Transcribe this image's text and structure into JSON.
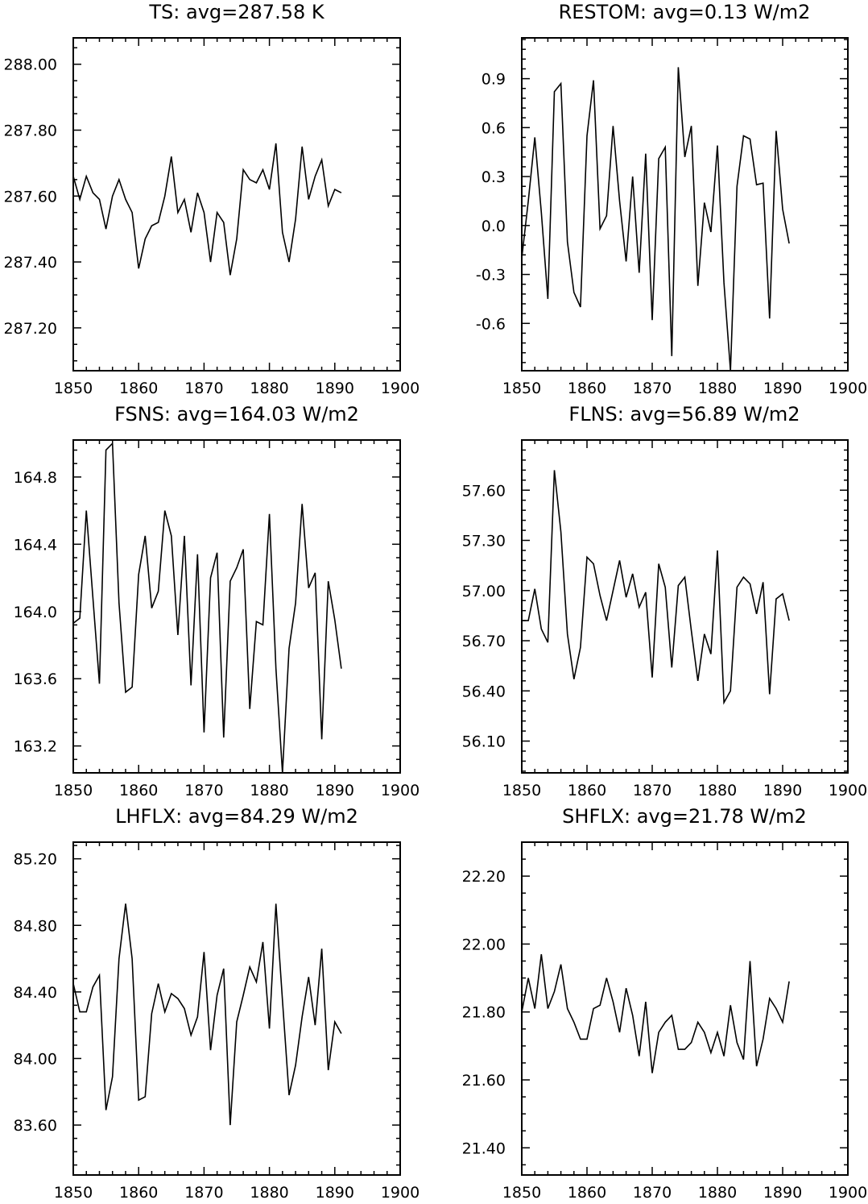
{
  "chart_data": [
    {
      "type": "line",
      "title": "TS: avg=287.58 K",
      "xlim": [
        1850,
        1900
      ],
      "ylim": [
        287.07,
        288.08
      ],
      "xticks": [
        "1850",
        "1860",
        "1870",
        "1880",
        "1890",
        "1900"
      ],
      "yticks": [
        "287.20",
        "287.40",
        "287.60",
        "287.80",
        "288.00"
      ],
      "series": [
        {
          "x": [
            1850,
            1851,
            1852,
            1853,
            1854,
            1855,
            1856,
            1857,
            1858,
            1859,
            1860,
            1861,
            1862,
            1863,
            1864,
            1865,
            1866,
            1867,
            1868,
            1869,
            1870,
            1871,
            1872,
            1873,
            1874,
            1875,
            1876,
            1877,
            1878,
            1879,
            1880,
            1881,
            1882,
            1883,
            1884,
            1885,
            1886,
            1887,
            1888,
            1889,
            1890,
            1891
          ],
          "values": [
            287.66,
            287.59,
            287.66,
            287.61,
            287.59,
            287.5,
            287.6,
            287.65,
            287.59,
            287.55,
            287.38,
            287.47,
            287.51,
            287.52,
            287.6,
            287.72,
            287.55,
            287.59,
            287.49,
            287.61,
            287.55,
            287.4,
            287.55,
            287.52,
            287.36,
            287.47,
            287.68,
            287.65,
            287.64,
            287.68,
            287.62,
            287.76,
            287.49,
            287.4,
            287.53,
            287.75,
            287.59,
            287.66,
            287.71,
            287.57,
            287.62,
            287.61
          ]
        }
      ]
    },
    {
      "type": "line",
      "title": "RESTOM: avg=0.13 W/m2",
      "xlim": [
        1850,
        1900
      ],
      "ylim": [
        -0.89,
        1.15
      ],
      "xticks": [
        "1850",
        "1860",
        "1870",
        "1880",
        "1890",
        "1900"
      ],
      "yticks": [
        "-0.6",
        "-0.3",
        "0.0",
        "0.3",
        "0.6",
        "0.9"
      ],
      "series": [
        {
          "x": [
            1850,
            1851,
            1852,
            1853,
            1854,
            1855,
            1856,
            1857,
            1858,
            1859,
            1860,
            1861,
            1862,
            1863,
            1864,
            1865,
            1866,
            1867,
            1868,
            1869,
            1870,
            1871,
            1872,
            1873,
            1874,
            1875,
            1876,
            1877,
            1878,
            1879,
            1880,
            1881,
            1882,
            1883,
            1884,
            1885,
            1886,
            1887,
            1888,
            1889,
            1890,
            1891
          ],
          "values": [
            -0.2,
            0.15,
            0.54,
            0.08,
            -0.45,
            0.82,
            0.87,
            -0.1,
            -0.41,
            -0.5,
            0.55,
            0.89,
            -0.02,
            0.06,
            0.61,
            0.15,
            -0.22,
            0.3,
            -0.29,
            0.44,
            -0.58,
            0.41,
            0.48,
            -0.8,
            0.97,
            0.42,
            0.61,
            -0.37,
            0.14,
            -0.04,
            0.49,
            -0.35,
            -0.89,
            0.24,
            0.55,
            0.53,
            0.25,
            0.26,
            -0.57,
            0.58,
            0.1,
            -0.11
          ]
        }
      ]
    },
    {
      "type": "line",
      "title": "FSNS: avg=164.03 W/m2",
      "xlim": [
        1850,
        1900
      ],
      "ylim": [
        163.04,
        165.02
      ],
      "xticks": [
        "1850",
        "1860",
        "1870",
        "1880",
        "1890",
        "1900"
      ],
      "yticks": [
        "163.2",
        "163.6",
        "164.0",
        "164.4",
        "164.8"
      ],
      "series": [
        {
          "x": [
            1850,
            1851,
            1852,
            1853,
            1854,
            1855,
            1856,
            1857,
            1858,
            1859,
            1860,
            1861,
            1862,
            1863,
            1864,
            1865,
            1866,
            1867,
            1868,
            1869,
            1870,
            1871,
            1872,
            1873,
            1874,
            1875,
            1876,
            1877,
            1878,
            1879,
            1880,
            1881,
            1882,
            1883,
            1884,
            1885,
            1886,
            1887,
            1888,
            1889,
            1890,
            1891
          ],
          "values": [
            163.93,
            163.96,
            164.6,
            164.08,
            163.57,
            164.96,
            165.0,
            164.05,
            163.52,
            163.55,
            164.22,
            164.45,
            164.02,
            164.12,
            164.6,
            164.45,
            163.86,
            164.45,
            163.56,
            164.34,
            163.28,
            164.2,
            164.35,
            163.25,
            164.18,
            164.26,
            164.37,
            163.42,
            163.94,
            163.92,
            164.58,
            163.66,
            163.04,
            163.78,
            164.05,
            164.64,
            164.14,
            164.23,
            163.24,
            164.18,
            163.95,
            163.66
          ]
        }
      ]
    },
    {
      "type": "line",
      "title": "FLNS: avg=56.89 W/m2",
      "xlim": [
        1850,
        1900
      ],
      "ylim": [
        55.91,
        57.9
      ],
      "xticks": [
        "1850",
        "1860",
        "1870",
        "1880",
        "1890",
        "1900"
      ],
      "yticks": [
        "56.10",
        "56.40",
        "56.70",
        "57.00",
        "57.30",
        "57.60"
      ],
      "series": [
        {
          "x": [
            1850,
            1851,
            1852,
            1853,
            1854,
            1855,
            1856,
            1857,
            1858,
            1859,
            1860,
            1861,
            1862,
            1863,
            1864,
            1865,
            1866,
            1867,
            1868,
            1869,
            1870,
            1871,
            1872,
            1873,
            1874,
            1875,
            1876,
            1877,
            1878,
            1879,
            1880,
            1881,
            1882,
            1883,
            1884,
            1885,
            1886,
            1887,
            1888,
            1889,
            1890,
            1891
          ],
          "values": [
            56.82,
            56.82,
            57.01,
            56.77,
            56.69,
            57.72,
            57.35,
            56.74,
            56.47,
            56.66,
            57.2,
            57.16,
            56.97,
            56.82,
            57.0,
            57.18,
            56.96,
            57.1,
            56.9,
            56.99,
            56.48,
            57.16,
            57.02,
            56.54,
            57.03,
            57.08,
            56.76,
            56.46,
            56.74,
            56.62,
            57.24,
            56.33,
            56.4,
            57.02,
            57.08,
            57.04,
            56.86,
            57.05,
            56.38,
            56.95,
            56.98,
            56.82
          ]
        }
      ]
    },
    {
      "type": "line",
      "title": "LHFLX: avg=84.29 W/m2",
      "xlim": [
        1850,
        1900
      ],
      "ylim": [
        83.3,
        85.3
      ],
      "xticks": [
        "1850",
        "1860",
        "1870",
        "1880",
        "1890",
        "1900"
      ],
      "yticks": [
        "83.60",
        "84.00",
        "84.40",
        "84.80",
        "85.20"
      ],
      "series": [
        {
          "x": [
            1850,
            1851,
            1852,
            1853,
            1854,
            1855,
            1856,
            1857,
            1858,
            1859,
            1860,
            1861,
            1862,
            1863,
            1864,
            1865,
            1866,
            1867,
            1868,
            1869,
            1870,
            1871,
            1872,
            1873,
            1874,
            1875,
            1876,
            1877,
            1878,
            1879,
            1880,
            1881,
            1882,
            1883,
            1884,
            1885,
            1886,
            1887,
            1888,
            1889,
            1890,
            1891
          ],
          "values": [
            84.45,
            84.28,
            84.28,
            84.43,
            84.5,
            83.69,
            83.89,
            84.6,
            84.93,
            84.6,
            83.75,
            83.77,
            84.27,
            84.45,
            84.28,
            84.39,
            84.36,
            84.3,
            84.14,
            84.25,
            84.64,
            84.05,
            84.38,
            84.54,
            83.6,
            84.22,
            84.38,
            84.55,
            84.46,
            84.7,
            84.18,
            84.93,
            84.35,
            83.78,
            83.96,
            84.25,
            84.49,
            84.2,
            84.66,
            83.93,
            84.22,
            84.15
          ]
        }
      ]
    },
    {
      "type": "line",
      "title": "SHFLX: avg=21.78 W/m2",
      "xlim": [
        1850,
        1900
      ],
      "ylim": [
        21.32,
        22.3
      ],
      "xticks": [
        "1850",
        "1860",
        "1870",
        "1880",
        "1890",
        "1900"
      ],
      "yticks": [
        "21.40",
        "21.60",
        "21.80",
        "22.00",
        "22.20"
      ],
      "series": [
        {
          "x": [
            1850,
            1851,
            1852,
            1853,
            1854,
            1855,
            1856,
            1857,
            1858,
            1859,
            1860,
            1861,
            1862,
            1863,
            1864,
            1865,
            1866,
            1867,
            1868,
            1869,
            1870,
            1871,
            1872,
            1873,
            1874,
            1875,
            1876,
            1877,
            1878,
            1879,
            1880,
            1881,
            1882,
            1883,
            1884,
            1885,
            1886,
            1887,
            1888,
            1889,
            1890,
            1891
          ],
          "values": [
            21.8,
            21.9,
            21.81,
            21.97,
            21.81,
            21.86,
            21.94,
            21.81,
            21.77,
            21.72,
            21.72,
            21.81,
            21.82,
            21.9,
            21.83,
            21.74,
            21.87,
            21.79,
            21.67,
            21.83,
            21.62,
            21.74,
            21.77,
            21.79,
            21.69,
            21.69,
            21.71,
            21.77,
            21.74,
            21.68,
            21.74,
            21.67,
            21.82,
            21.71,
            21.66,
            21.95,
            21.64,
            21.72,
            21.84,
            21.81,
            21.77,
            21.89
          ]
        }
      ]
    }
  ]
}
